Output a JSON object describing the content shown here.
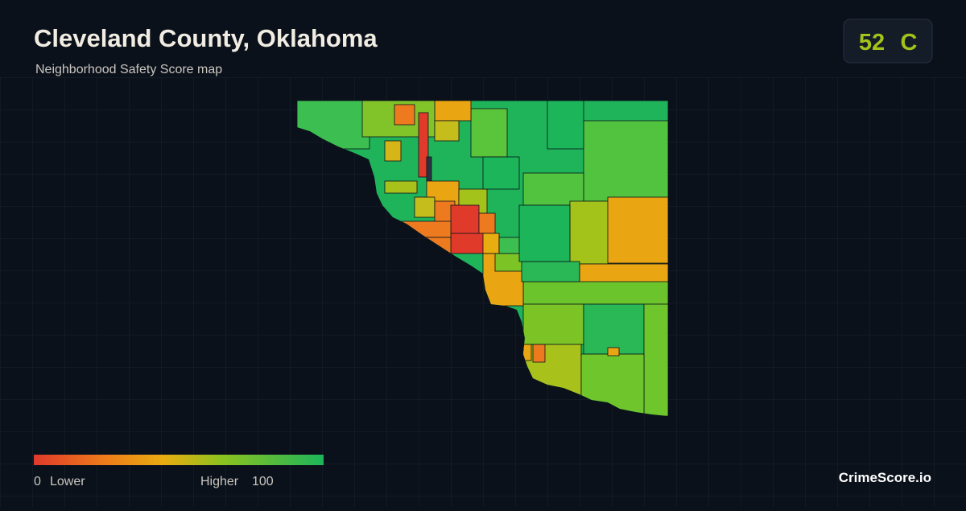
{
  "header": {
    "title": "Cleveland County, Oklahoma",
    "subtitle": "Neighborhood Safety Score map"
  },
  "badge": {
    "score": 52,
    "grade": "C"
  },
  "legend": {
    "min": 0,
    "min_label": "Lower",
    "max_label": "Higher",
    "max": 100
  },
  "brand": "CrimeScore.io"
}
